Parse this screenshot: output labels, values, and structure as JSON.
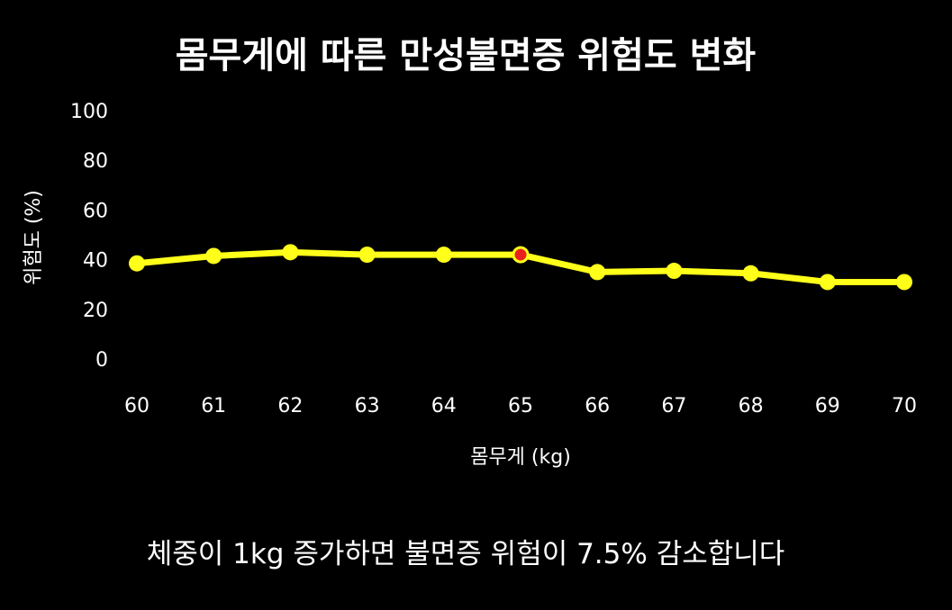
{
  "chart_data": {
    "type": "line",
    "title": "몸무게에 따른 만성불면증 위험도 변화",
    "xlabel": "몸무게 (kg)",
    "ylabel": "위험도 (%)",
    "x": [
      60,
      61,
      62,
      63,
      64,
      65,
      66,
      67,
      68,
      69,
      70
    ],
    "x_tick_labels": [
      "60",
      "61",
      "62",
      "63",
      "64",
      "65",
      "66",
      "67",
      "68",
      "69",
      "70"
    ],
    "y_ticks": [
      0,
      20,
      40,
      60,
      80,
      100
    ],
    "y_tick_labels": [
      "0",
      "20",
      "40",
      "60",
      "80",
      "100"
    ],
    "ylim": [
      0,
      100
    ],
    "xlim": [
      60,
      70
    ],
    "grid": false,
    "series": [
      {
        "values": [
          38.5,
          41.5,
          43,
          42,
          42,
          42,
          35,
          35.5,
          34.5,
          31,
          31
        ],
        "color": "#ffff1a",
        "marker_color": "#ffff1a"
      }
    ],
    "highlight": {
      "x": 65,
      "color": "#e8221c"
    }
  },
  "caption": "체중이 1kg 증가하면 불면증 위험이 7.5% 감소합니다",
  "colors": {
    "background": "#000000",
    "text": "#ffffff",
    "line": "#ffff1a",
    "highlight": "#e8221c"
  }
}
